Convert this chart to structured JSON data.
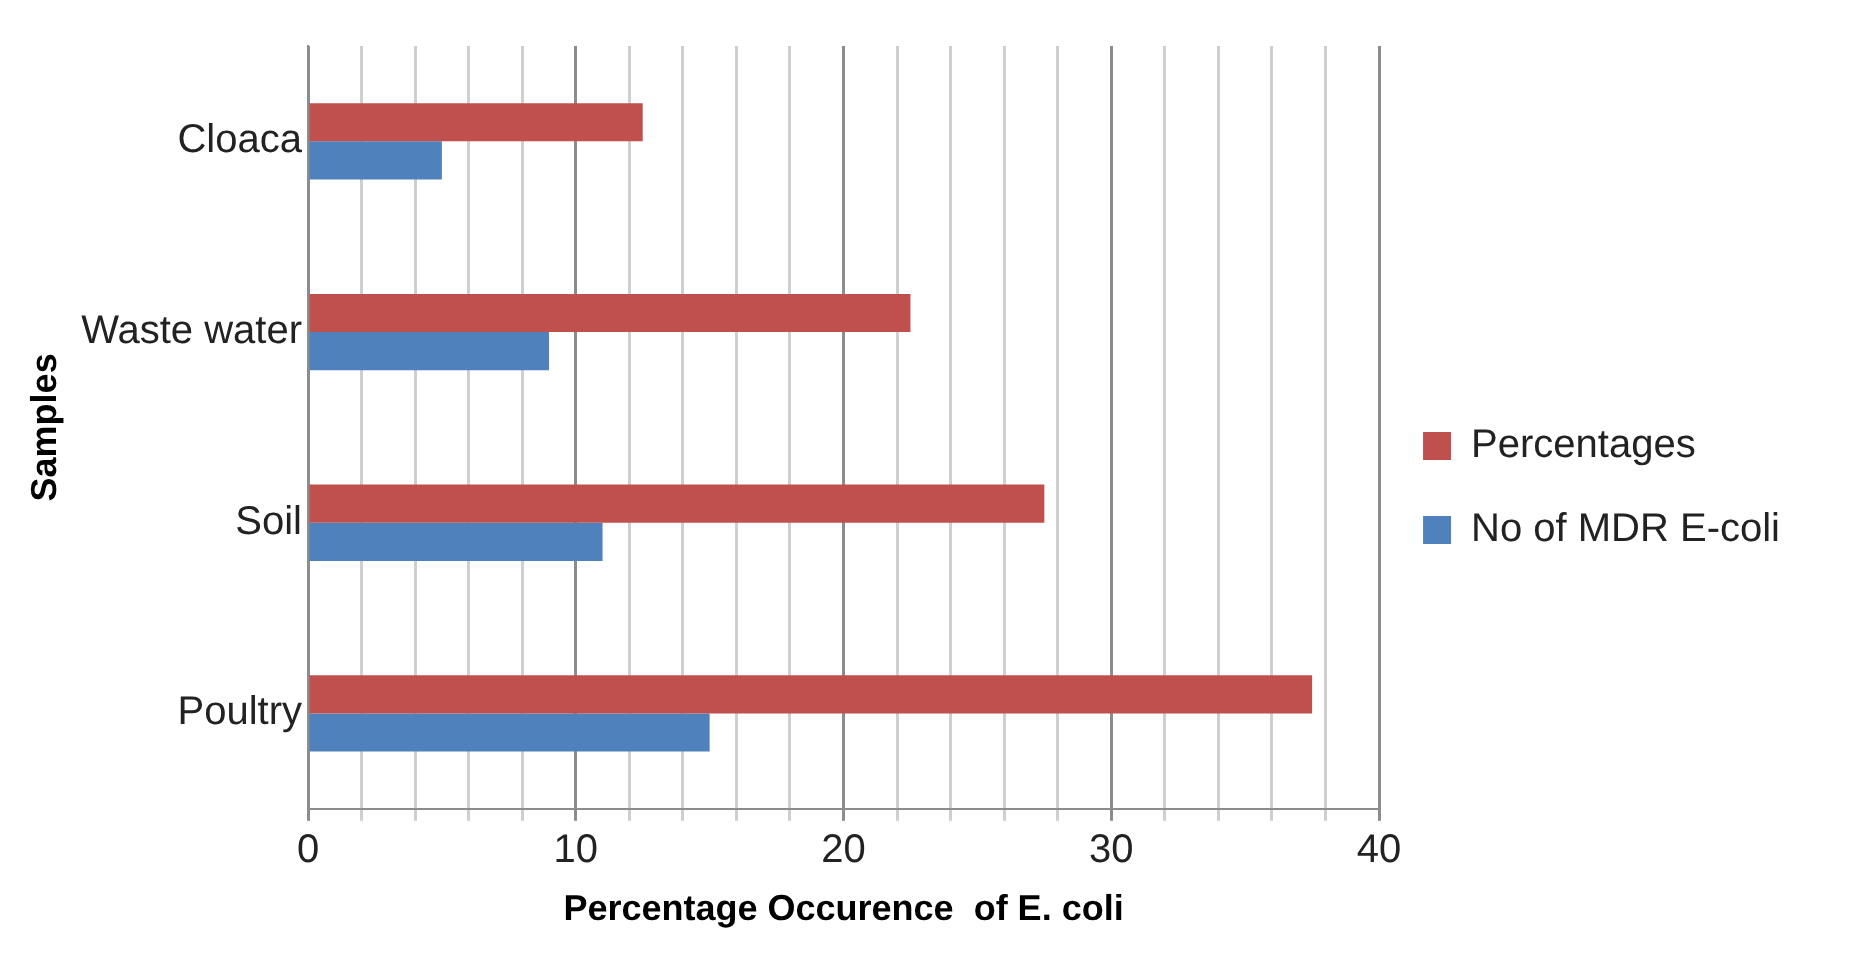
{
  "chart_data": {
    "type": "bar",
    "orientation": "horizontal",
    "xlabel": "Percentage Occurence  of E. coli",
    "ylabel": "Samples",
    "categories": [
      "Cloaca",
      "Waste water",
      "Soil",
      "Poultry"
    ],
    "series": [
      {
        "name": "Percentages",
        "color": "#c0504d",
        "values": [
          12.5,
          22.5,
          27.5,
          37.5
        ]
      },
      {
        "name": "No of MDR E-coli",
        "color": "#4f81bd",
        "values": [
          5,
          9,
          11,
          15
        ]
      }
    ],
    "xlim": [
      0,
      40
    ],
    "xticks": [
      0,
      {
        "value": 2,
        "label": null
      },
      {
        "value": 4,
        "label": null
      },
      {
        "value": 6,
        "label": null
      },
      {
        "value": 8,
        "label": null
      },
      10,
      {
        "value": 12,
        "label": null
      },
      {
        "value": 14,
        "label": null
      },
      {
        "value": 16,
        "label": null
      },
      {
        "value": 18,
        "label": null
      },
      20,
      {
        "value": 22,
        "label": null
      },
      {
        "value": 24,
        "label": null
      },
      {
        "value": 26,
        "label": null
      },
      {
        "value": 28,
        "label": null
      },
      30,
      {
        "value": 32,
        "label": null
      },
      {
        "value": 34,
        "label": null
      },
      {
        "value": 36,
        "label": null
      },
      {
        "value": 38,
        "label": null
      },
      40
    ],
    "grid": "x",
    "legend": "right"
  }
}
